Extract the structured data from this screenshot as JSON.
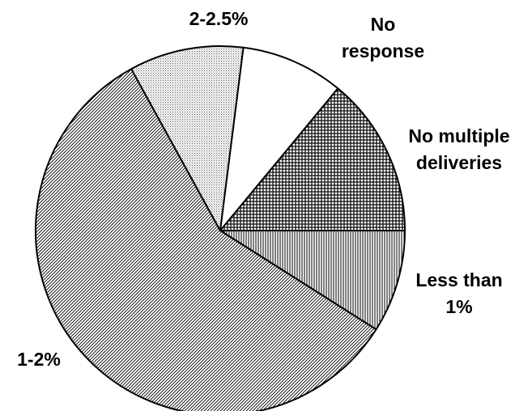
{
  "chart_data": {
    "type": "pie",
    "title": "",
    "slices": [
      {
        "label_lines": [
          "Less than",
          "1%"
        ],
        "value": 9,
        "pattern": "vertical-lines"
      },
      {
        "label_lines": [
          "1-2%"
        ],
        "value": 58,
        "pattern": "diagonal-lines"
      },
      {
        "label_lines": [
          "2-2.5%"
        ],
        "value": 10,
        "pattern": "fine-dots"
      },
      {
        "label_lines": [
          "No",
          "response"
        ],
        "value": 9,
        "pattern": "solid-white"
      },
      {
        "label_lines": [
          "No multiple",
          "deliveries"
        ],
        "value": 14,
        "pattern": "crosshatch-grid"
      }
    ],
    "start_angle_deg": 0,
    "direction": "clockwise",
    "legend": "none",
    "colors": {
      "stroke": "#000000",
      "fill": "#ffffff",
      "ink": "#000000"
    }
  }
}
